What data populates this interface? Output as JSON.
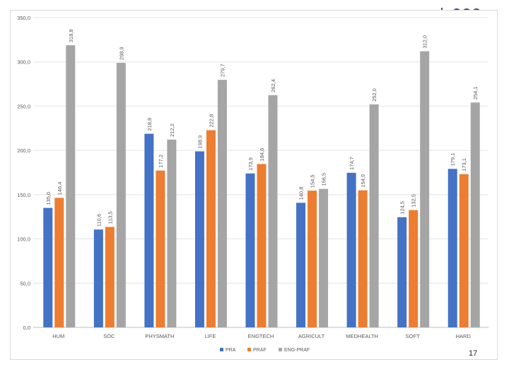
{
  "slide": {
    "page_number": "17"
  },
  "chart_data": {
    "type": "bar",
    "title": "",
    "xlabel": "",
    "ylabel": "",
    "ylim": [
      0,
      350
    ],
    "yticks": [
      "0,0",
      "50,0",
      "100,0",
      "150,0",
      "200,0",
      "250,0",
      "300,0",
      "350,0"
    ],
    "ytick_values": [
      0,
      50,
      100,
      150,
      200,
      250,
      300,
      350
    ],
    "grid": true,
    "legend_position": "bottom",
    "categories": [
      "HUM",
      "SOC",
      "PHYSMATH",
      "LIFE",
      "ENGTECH",
      "AGRICULT",
      "MEDHEALTH",
      "SOFT",
      "HARD"
    ],
    "series": [
      {
        "name": "PRA",
        "color": "#4472c4",
        "values": [
          135.0,
          110.6,
          218.8,
          198.9,
          173.9,
          140.8,
          174.7,
          124.5,
          179.1
        ],
        "labels": [
          "135,0",
          "110,6",
          "218,8",
          "198,9",
          "173,9",
          "140,8",
          "174,7",
          "124,5",
          "179,1"
        ]
      },
      {
        "name": "PRAF",
        "color": "#ed7d31",
        "values": [
          146.4,
          113.5,
          177.2,
          222.8,
          184.6,
          154.5,
          154.9,
          132.5,
          173.1
        ],
        "labels": [
          "146,4",
          "113,5",
          "177,2",
          "222,8",
          "184,6",
          "154,5",
          "154,9",
          "132,5",
          "173,1"
        ]
      },
      {
        "name": "ENG-PRAF",
        "color": "#a5a5a5",
        "values": [
          318.8,
          298.9,
          212.2,
          279.7,
          262.4,
          156.5,
          252.0,
          312.0,
          254.1
        ],
        "labels": [
          "318,8",
          "298,9",
          "212,2",
          "279,7",
          "262,4",
          "156,5",
          "252,0",
          "312,0",
          "254,1"
        ]
      }
    ]
  }
}
